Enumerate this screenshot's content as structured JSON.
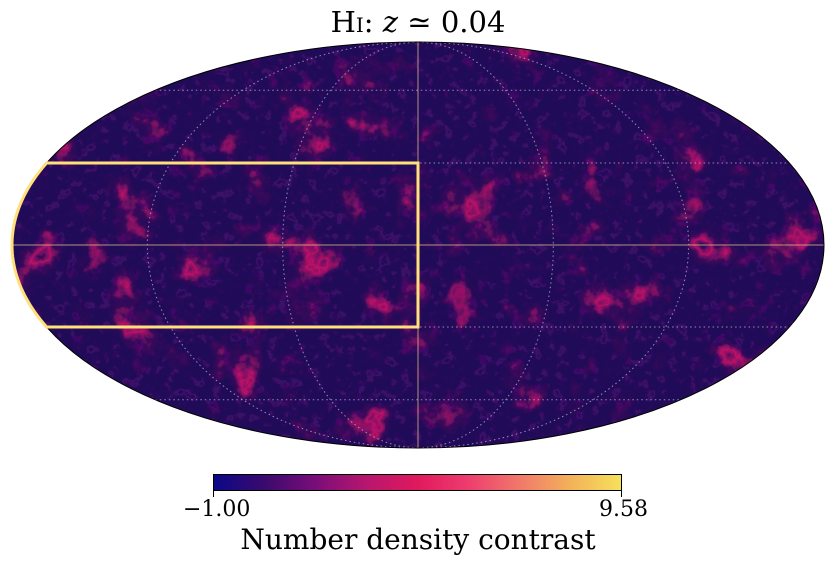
{
  "title": {
    "species": "Hi",
    "separator": ":",
    "symbol": "z",
    "relation": "≃",
    "value": "0.04"
  },
  "colorbar": {
    "min_label": "−1.00",
    "max_label": "9.58",
    "label": "Number density contrast",
    "colormap": "plasma-like",
    "stops": [
      "#0c0887",
      "#3b0a6e",
      "#7a0d7a",
      "#b8166e",
      "#e0195e",
      "#ee3d6f",
      "#f1786a",
      "#f3b15a",
      "#f5e15c"
    ]
  },
  "map": {
    "projection": "mollweide",
    "graticule": "dotted",
    "background_color": "#1f0b57",
    "filament_color": "#c8146a",
    "highlight_color": "#ffe07a",
    "axis_color": "#d8b48a",
    "highlight_region": {
      "lon_range_deg": [
        -180,
        0
      ],
      "lat_range_deg": [
        -30,
        30
      ]
    }
  }
}
